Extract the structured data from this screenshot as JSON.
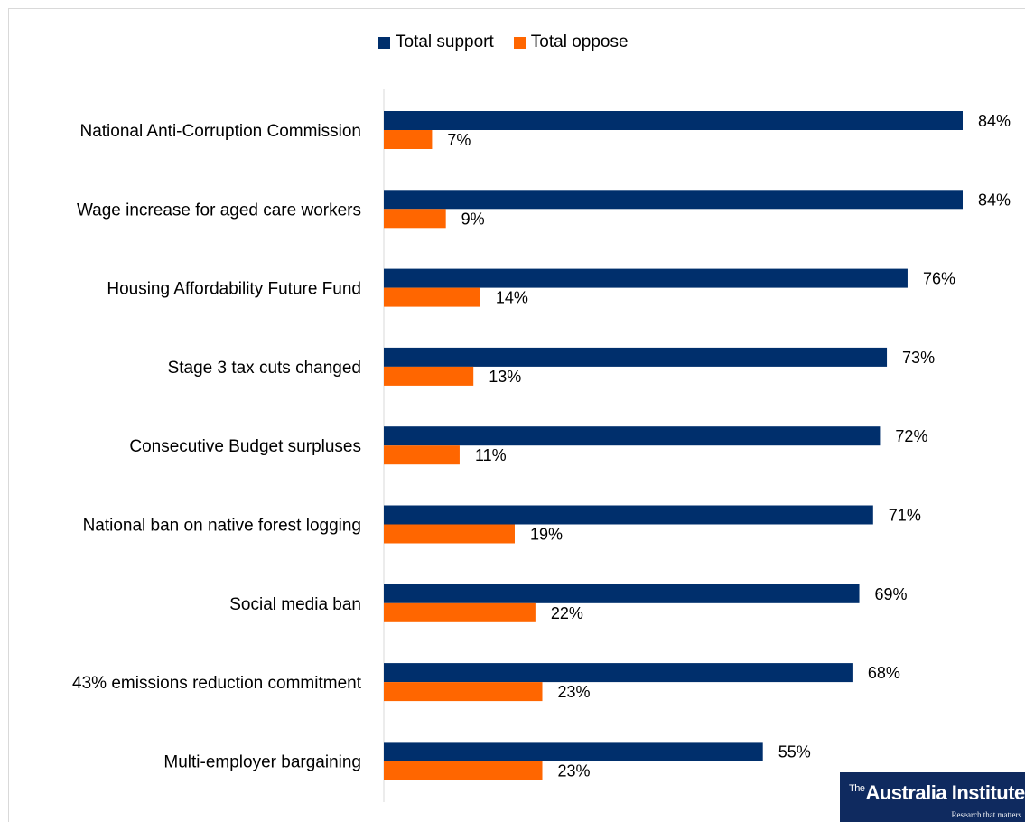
{
  "chart_data": {
    "type": "bar",
    "orientation": "horizontal",
    "categories": [
      "National Anti-Corruption Commission",
      "Wage increase for aged care workers",
      "Housing Affordability Future Fund",
      "Stage 3 tax cuts changed",
      "Consecutive Budget surpluses",
      "National ban on native forest logging",
      "Social media ban",
      "43% emissions reduction commitment",
      "Multi-employer bargaining"
    ],
    "series": [
      {
        "name": "Total support",
        "color": "#002f6c",
        "values": [
          84,
          84,
          76,
          73,
          72,
          71,
          69,
          68,
          55
        ],
        "labels": [
          "84%",
          "84%",
          "76%",
          "73%",
          "72%",
          "71%",
          "69%",
          "68%",
          "55%"
        ]
      },
      {
        "name": "Total oppose",
        "color": "#ff6600",
        "values": [
          7,
          9,
          14,
          13,
          11,
          19,
          22,
          23,
          23
        ],
        "labels": [
          "7%",
          "9%",
          "14%",
          "13%",
          "11%",
          "19%",
          "22%",
          "23%",
          "23%"
        ]
      }
    ],
    "xlim": [
      0,
      84
    ],
    "grid": false,
    "legend_position": "top"
  },
  "logo": {
    "brand_prefix": "The",
    "brand_name": "Australia Institute",
    "tagline": "Research that matters"
  }
}
